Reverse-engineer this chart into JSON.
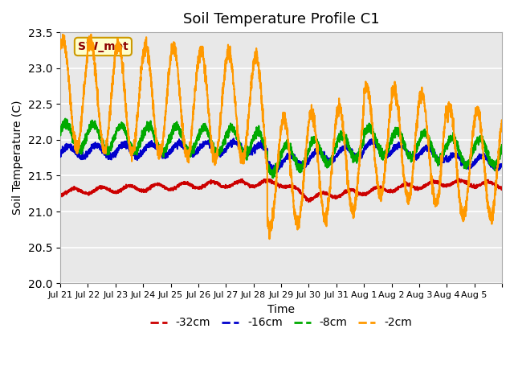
{
  "title": "Soil Temperature Profile C1",
  "xlabel": "Time",
  "ylabel": "Soil Temperature (C)",
  "ylim": [
    20.0,
    23.5
  ],
  "background_color": "#e8e8e8",
  "figure_color": "#ffffff",
  "grid_color": "#ffffff",
  "annotation_text": "SW_met",
  "annotation_bg": "#ffffcc",
  "annotation_edge": "#cc9900",
  "annotation_text_color": "#8b0000",
  "legend_labels": [
    "-32cm",
    "-16cm",
    "-8cm",
    "-2cm"
  ],
  "line_colors": [
    "#cc0000",
    "#0000cc",
    "#00aa00",
    "#ff9900"
  ],
  "line_width": 1.5,
  "tick_positions": [
    0,
    1,
    2,
    3,
    4,
    5,
    6,
    7,
    8,
    9,
    10,
    11,
    12,
    13,
    14,
    15,
    16
  ],
  "tick_labels": [
    "Jul 21",
    "Jul 22",
    "Jul 23",
    "Jul 24",
    "Jul 25",
    "Jul 26",
    "Jul 27",
    "Jul 28",
    "Jul 29",
    "Jul 30",
    "Jul 31",
    "Aug 1",
    "Aug 2",
    "Aug 3",
    "Aug 4",
    "Aug 5",
    ""
  ],
  "num_points": 3360
}
